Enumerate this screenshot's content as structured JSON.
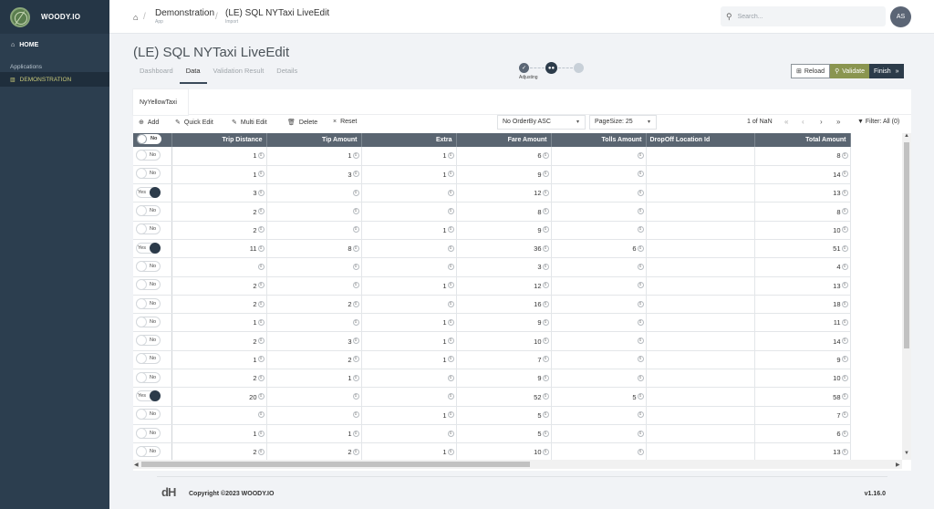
{
  "sidebar": {
    "brand": "WOODY.IO",
    "home": "HOME",
    "section": "Applications",
    "app": "DEMONSTRATION"
  },
  "topbar": {
    "crumb1": {
      "main": "Demonstration",
      "sub": "App"
    },
    "crumb2": {
      "main": "(LE) SQL NYTaxi LiveEdit",
      "sub": "Import"
    },
    "search_placeholder": "Search...",
    "avatar": "AS"
  },
  "page": {
    "title": "(LE) SQL NYTaxi LiveEdit",
    "tabs": [
      "Dashboard",
      "Data",
      "Validation Result",
      "Details"
    ],
    "active_tab": "Data",
    "step_label": "Adjusting"
  },
  "actions": {
    "reload": "Reload",
    "validate": "Validate",
    "finish": "Finish"
  },
  "card": {
    "tab": "NyYellowTaxi",
    "toolbar": {
      "add": "Add",
      "quick_edit": "Quick Edit",
      "multi_edit": "Multi Edit",
      "delete": "Delete",
      "reset": "Reset",
      "orderby": "No OrderBy ASC",
      "pagesize": "PageSize: 25",
      "pager": "1  of NaN",
      "filter": "Filter: All (0)"
    }
  },
  "grid": {
    "header_toggle": "No",
    "columns": [
      "Trip Distance",
      "Tip Amount",
      "Extra",
      "Fare Amount",
      "Tolls Amount",
      "DropOff Location Id",
      "Total Amount"
    ],
    "rows": [
      {
        "flag": "No",
        "v": [
          "1",
          "1",
          "1",
          "6",
          "",
          "",
          "8"
        ]
      },
      {
        "flag": "No",
        "v": [
          "1",
          "3",
          "1",
          "9",
          "",
          "",
          "14"
        ]
      },
      {
        "flag": "Yes",
        "v": [
          "3",
          "",
          "",
          "12",
          "",
          "",
          "13"
        ]
      },
      {
        "flag": "No",
        "v": [
          "2",
          "",
          "",
          "8",
          "",
          "",
          "8"
        ]
      },
      {
        "flag": "No",
        "v": [
          "2",
          "",
          "1",
          "9",
          "",
          "",
          "10"
        ]
      },
      {
        "flag": "Yes",
        "v": [
          "11",
          "8",
          "",
          "36",
          "6",
          "",
          "51"
        ]
      },
      {
        "flag": "No",
        "v": [
          "",
          "",
          "",
          "3",
          "",
          "",
          "4"
        ]
      },
      {
        "flag": "No",
        "v": [
          "2",
          "",
          "1",
          "12",
          "",
          "",
          "13"
        ]
      },
      {
        "flag": "No",
        "v": [
          "2",
          "2",
          "",
          "16",
          "",
          "",
          "18"
        ]
      },
      {
        "flag": "No",
        "v": [
          "1",
          "",
          "1",
          "9",
          "",
          "",
          "11"
        ]
      },
      {
        "flag": "No",
        "v": [
          "2",
          "3",
          "1",
          "10",
          "",
          "",
          "14"
        ]
      },
      {
        "flag": "No",
        "v": [
          "1",
          "2",
          "1",
          "7",
          "",
          "",
          "9"
        ]
      },
      {
        "flag": "No",
        "v": [
          "2",
          "1",
          "",
          "9",
          "",
          "",
          "10"
        ]
      },
      {
        "flag": "Yes",
        "v": [
          "20",
          "",
          "",
          "52",
          "5",
          "",
          "58"
        ]
      },
      {
        "flag": "No",
        "v": [
          "",
          "",
          "1",
          "5",
          "",
          "",
          "7"
        ]
      },
      {
        "flag": "No",
        "v": [
          "1",
          "1",
          "",
          "5",
          "",
          "",
          "6"
        ]
      },
      {
        "flag": "No",
        "v": [
          "2",
          "2",
          "1",
          "10",
          "",
          "",
          "13"
        ]
      }
    ]
  },
  "footer": {
    "logo": "dH",
    "copyright": "Copyright ©2023 WOODY.IO",
    "version": "v1.16.0"
  }
}
